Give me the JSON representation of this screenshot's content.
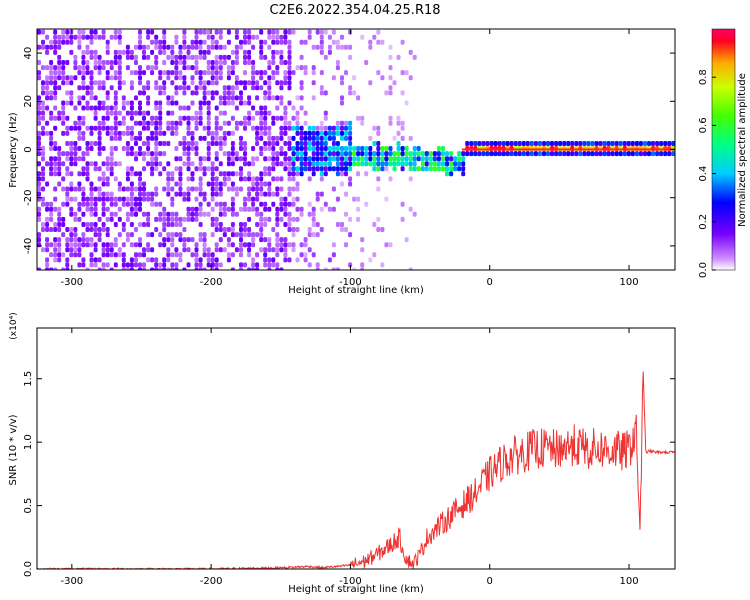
{
  "title": "C2E6.2022.354.04.25.R18",
  "colors": {
    "snr_line": "#ee3333",
    "axis": "#000000",
    "background": "#ffffff"
  },
  "chart_data": [
    {
      "type": "heatmap",
      "xlabel": "Height of straight line (km)",
      "ylabel": "Frequency (Hz)",
      "xlim": [
        -325,
        133
      ],
      "ylim": [
        -50,
        50
      ],
      "xticks": [
        -300,
        -200,
        -100,
        0,
        100
      ],
      "xtick_labels": [
        "-300",
        "-200",
        "-100",
        "0",
        "100"
      ],
      "yticks": [
        -40,
        -20,
        0,
        20,
        40
      ],
      "ytick_labels": [
        "-40",
        "-20",
        "0",
        "20",
        "40"
      ],
      "colorbar": {
        "label": "Normalized spectral amplitude",
        "range": [
          0.0,
          1.0
        ],
        "ticks": [
          0.0,
          0.2,
          0.4,
          0.6,
          0.8
        ],
        "tick_labels": [
          "0.0",
          "0.2",
          "0.4",
          "0.6",
          "0.8"
        ],
        "colormap": "rainbow (violet to red)"
      },
      "description_regions": [
        {
          "x_range": [
            -325,
            -145
          ],
          "freq_range": [
            -50,
            50
          ],
          "amplitude": [
            0.0,
            0.1
          ]
        },
        {
          "x_range": [
            -145,
            -100
          ],
          "freq_range": [
            -10,
            10
          ],
          "amplitude": [
            0.1,
            0.4
          ]
        },
        {
          "x_range": [
            -100,
            -20
          ],
          "freq_range": [
            -8,
            4
          ],
          "amplitude": [
            0.2,
            0.6
          ]
        },
        {
          "x_range": [
            -15,
            133
          ],
          "freq_range": [
            -2,
            2
          ],
          "amplitude": [
            0.5,
            1.0
          ]
        }
      ]
    },
    {
      "type": "line",
      "xlabel": "Height of straight line (km)",
      "ylabel": "SNR (10 * v/v)",
      "y_multiplier": "(x10⁴)",
      "xlim": [
        -325,
        133
      ],
      "ylim": [
        0,
        1.9
      ],
      "xticks": [
        -300,
        -200,
        -100,
        0,
        100
      ],
      "xtick_labels": [
        "-300",
        "-200",
        "-100",
        "0",
        "100"
      ],
      "yticks": [
        0.0,
        0.5,
        1.0,
        1.5
      ],
      "ytick_labels": [
        "0.0",
        "0.5",
        "1.0",
        "1.5"
      ],
      "series": [
        {
          "x": [
            -325,
            -300,
            -250,
            -200,
            -150,
            -130,
            -120,
            -110,
            -100,
            -90,
            -80,
            -70,
            -65,
            -60,
            -55,
            -50,
            -45,
            -40,
            -35,
            -30,
            -25,
            -20,
            -15,
            -10,
            -5,
            0,
            5,
            10,
            15,
            20,
            25,
            30,
            35,
            40,
            45,
            50,
            55,
            60,
            65,
            70,
            75,
            80,
            85,
            90,
            95,
            100,
            105,
            108,
            110,
            112,
            115,
            120,
            133
          ],
          "y": [
            0.0,
            0.0,
            0.0,
            0.0,
            0.01,
            0.02,
            0.01,
            0.02,
            0.03,
            0.06,
            0.12,
            0.2,
            0.25,
            0.08,
            0.04,
            0.12,
            0.25,
            0.3,
            0.35,
            0.4,
            0.45,
            0.5,
            0.55,
            0.6,
            0.68,
            0.75,
            0.8,
            0.85,
            0.88,
            0.9,
            0.92,
            0.94,
            0.95,
            0.95,
            0.94,
            0.95,
            0.96,
            0.98,
            0.96,
            0.94,
            0.95,
            0.95,
            0.93,
            0.94,
            0.92,
            0.94,
            1.1,
            0.3,
            1.6,
            0.92,
            0.93,
            0.92,
            0.92
          ]
        }
      ]
    }
  ]
}
